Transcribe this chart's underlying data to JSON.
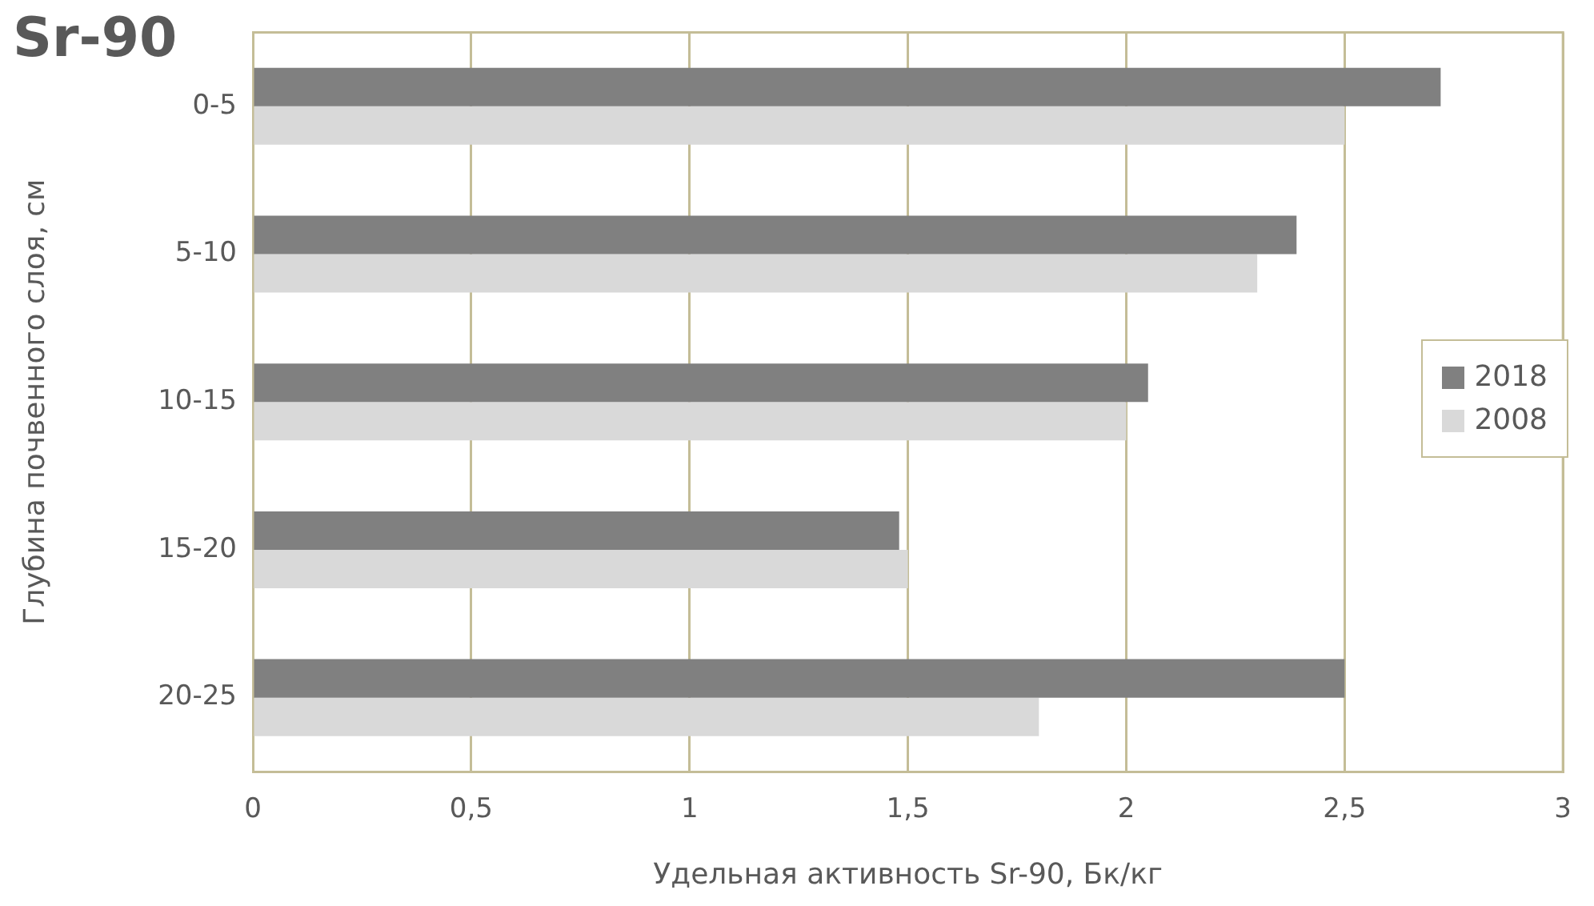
{
  "chart_data": {
    "type": "bar",
    "title": "Sr-90",
    "orientation": "horizontal",
    "xlabel": "Удельная активность Sr-90, Бк/кг",
    "ylabel": "Глубина почвенного слоя, см",
    "categories": [
      "0-5",
      "5-10",
      "10-15",
      "15-20",
      "20-25"
    ],
    "series": [
      {
        "name": "2018",
        "color": "#808080",
        "values": [
          2.72,
          2.39,
          2.05,
          1.48,
          2.5
        ]
      },
      {
        "name": "2008",
        "color": "#d9d9d9",
        "values": [
          2.5,
          2.3,
          2.0,
          1.5,
          1.8
        ]
      }
    ],
    "xlim": [
      0,
      3
    ],
    "xticks": [
      0,
      {
        "value": 0.5,
        "label": "0,5"
      },
      1,
      {
        "value": 1.5,
        "label": "1,5"
      },
      2,
      {
        "value": 2.5,
        "label": "2,5"
      },
      3
    ],
    "grid": "x",
    "legend": "right"
  }
}
